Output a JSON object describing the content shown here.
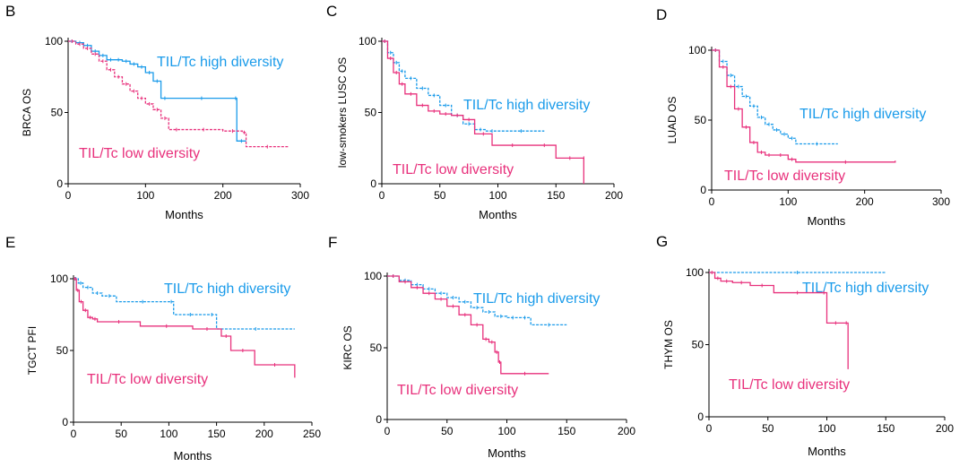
{
  "colors": {
    "high": "#1a9bea",
    "low": "#e8317c",
    "axis": "#000000"
  },
  "chart_data": [
    {
      "panel": "B",
      "type": "line",
      "xlabel": "Months",
      "ylabel": "BRCA OS",
      "xlim": [
        0,
        300
      ],
      "ylim": [
        0,
        100
      ],
      "xticks": [
        0,
        100,
        200,
        300
      ],
      "yticks": [
        0,
        50,
        100
      ],
      "series": [
        {
          "name": "TIL/Tc high diversity",
          "style": "solid",
          "x": [
            0,
            10,
            20,
            30,
            40,
            50,
            60,
            70,
            80,
            90,
            100,
            110,
            120,
            130,
            215,
            218,
            230
          ],
          "y": [
            100,
            99,
            97,
            93,
            90,
            87,
            87,
            86,
            84,
            82,
            78,
            72,
            60,
            60,
            60,
            30,
            30
          ]
        },
        {
          "name": "TIL/Tc low diversity",
          "style": "dotted",
          "x": [
            0,
            10,
            20,
            30,
            40,
            50,
            60,
            70,
            80,
            90,
            100,
            110,
            120,
            130,
            150,
            200,
            225,
            230,
            285
          ],
          "y": [
            100,
            98,
            95,
            91,
            86,
            80,
            75,
            70,
            65,
            60,
            56,
            52,
            46,
            38,
            38,
            37,
            36,
            26,
            26
          ]
        }
      ]
    },
    {
      "panel": "C",
      "type": "line",
      "xlabel": "Months",
      "ylabel": "low-smokers LUSC OS",
      "xlim": [
        0,
        200
      ],
      "ylim": [
        0,
        100
      ],
      "xticks": [
        0,
        50,
        100,
        150,
        200
      ],
      "yticks": [
        0,
        50,
        100
      ],
      "series": [
        {
          "name": "TIL/Tc high diversity",
          "style": "dotted",
          "x": [
            0,
            5,
            10,
            15,
            20,
            30,
            40,
            50,
            60,
            70,
            80,
            90,
            100,
            140
          ],
          "y": [
            100,
            92,
            85,
            79,
            74,
            67,
            62,
            55,
            48,
            42,
            38,
            37,
            37,
            37
          ]
        },
        {
          "name": "TIL/Tc low diversity",
          "style": "solid",
          "x": [
            0,
            5,
            10,
            15,
            20,
            30,
            40,
            50,
            60,
            70,
            80,
            95,
            130,
            150,
            174,
            174
          ],
          "y": [
            100,
            88,
            78,
            70,
            63,
            55,
            51,
            49,
            48,
            45,
            35,
            27,
            27,
            18,
            18,
            0
          ]
        }
      ]
    },
    {
      "panel": "D",
      "type": "line",
      "xlabel": "Months",
      "ylabel": "LUAD OS",
      "xlim": [
        0,
        300
      ],
      "ylim": [
        0,
        100
      ],
      "xticks": [
        0,
        100,
        200,
        300
      ],
      "yticks": [
        0,
        50,
        100
      ],
      "series": [
        {
          "name": "TIL/Tc high diversity",
          "style": "dotted",
          "x": [
            0,
            10,
            20,
            30,
            40,
            50,
            60,
            70,
            80,
            90,
            100,
            110,
            165
          ],
          "y": [
            100,
            92,
            82,
            74,
            67,
            60,
            52,
            47,
            43,
            40,
            37,
            33,
            33
          ]
        },
        {
          "name": "TIL/Tc low diversity",
          "style": "solid",
          "x": [
            0,
            10,
            20,
            30,
            40,
            50,
            60,
            70,
            80,
            100,
            110,
            240
          ],
          "y": [
            100,
            88,
            74,
            58,
            45,
            34,
            27,
            25,
            25,
            22,
            20,
            21
          ]
        }
      ]
    },
    {
      "panel": "E",
      "type": "line",
      "xlabel": "Months",
      "ylabel": "TGCT PFI",
      "xlim": [
        0,
        250
      ],
      "ylim": [
        0,
        100
      ],
      "xticks": [
        0,
        50,
        100,
        150,
        200,
        250
      ],
      "yticks": [
        0,
        50,
        100
      ],
      "series": [
        {
          "name": "TIL/Tc high diversity",
          "style": "dotted",
          "x": [
            0,
            5,
            10,
            20,
            30,
            45,
            100,
            105,
            140,
            150,
            232
          ],
          "y": [
            100,
            97,
            94,
            90,
            88,
            84,
            84,
            75,
            75,
            65,
            65
          ]
        },
        {
          "name": "TIL/Tc low diversity",
          "style": "solid",
          "x": [
            0,
            3,
            6,
            10,
            15,
            20,
            25,
            70,
            125,
            155,
            165,
            190,
            232
          ],
          "y": [
            100,
            92,
            84,
            78,
            73,
            72,
            70,
            67,
            65,
            60,
            50,
            40,
            31
          ]
        }
      ]
    },
    {
      "panel": "F",
      "type": "line",
      "xlabel": "Months",
      "ylabel": "KIRC OS",
      "xlim": [
        0,
        200
      ],
      "ylim": [
        0,
        100
      ],
      "xticks": [
        0,
        50,
        100,
        150,
        200
      ],
      "yticks": [
        0,
        50,
        100
      ],
      "series": [
        {
          "name": "TIL/Tc high diversity",
          "style": "dotted",
          "x": [
            0,
            10,
            20,
            30,
            40,
            50,
            60,
            70,
            80,
            90,
            100,
            110,
            120,
            150
          ],
          "y": [
            100,
            97,
            94,
            91,
            88,
            85,
            82,
            78,
            75,
            72,
            71,
            71,
            66,
            66
          ]
        },
        {
          "name": "TIL/Tc low diversity",
          "style": "solid",
          "x": [
            0,
            10,
            20,
            30,
            40,
            50,
            60,
            70,
            80,
            85,
            90,
            93,
            95,
            135
          ],
          "y": [
            100,
            96,
            92,
            88,
            84,
            79,
            73,
            66,
            56,
            54,
            47,
            40,
            32,
            32
          ]
        }
      ]
    },
    {
      "panel": "G",
      "type": "line",
      "xlabel": "Months",
      "ylabel": "THYM OS",
      "xlim": [
        0,
        200
      ],
      "ylim": [
        0,
        100
      ],
      "xticks": [
        0,
        50,
        100,
        150,
        200
      ],
      "yticks": [
        0,
        50,
        100
      ],
      "series": [
        {
          "name": "TIL/Tc high diversity",
          "style": "dotted",
          "x": [
            0,
            150
          ],
          "y": [
            100,
            100
          ]
        },
        {
          "name": "TIL/Tc low diversity",
          "style": "solid",
          "x": [
            0,
            5,
            10,
            20,
            35,
            55,
            95,
            100,
            115,
            118
          ],
          "y": [
            100,
            96,
            94,
            93,
            91,
            86,
            86,
            65,
            65,
            33
          ]
        }
      ]
    }
  ]
}
